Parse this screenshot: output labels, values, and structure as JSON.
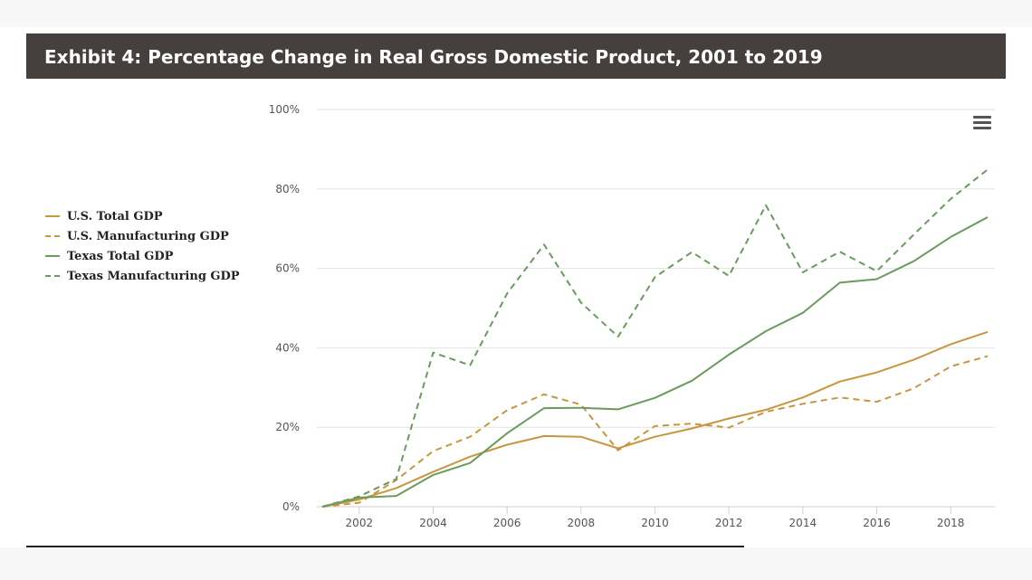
{
  "header": {
    "title": "Exhibit 4: Percentage Change in Real Gross Domestic Product, 2001 to 2019"
  },
  "menu": {
    "icon": "hamburger-menu-icon"
  },
  "colors": {
    "header_bg": "#45403d",
    "us": "#c8963e",
    "texas": "#6b9a5e",
    "grid": "#e2e2e2"
  },
  "chart_data": {
    "type": "line",
    "title": "",
    "xlabel": "",
    "ylabel": "",
    "xlim": [
      2001,
      2019
    ],
    "ylim": [
      0,
      100
    ],
    "x_ticks": [
      2002,
      2004,
      2006,
      2008,
      2010,
      2012,
      2014,
      2016,
      2018
    ],
    "y_ticks": [
      0,
      20,
      40,
      60,
      80,
      100
    ],
    "y_tick_labels": [
      "0%",
      "20%",
      "40%",
      "60%",
      "80%",
      "100%"
    ],
    "grid": true,
    "legend_position": "left",
    "x": [
      2001,
      2002,
      2003,
      2004,
      2005,
      2006,
      2007,
      2008,
      2009,
      2010,
      2011,
      2012,
      2013,
      2014,
      2015,
      2016,
      2017,
      2018,
      2019
    ],
    "series": [
      {
        "name": "U.S. Total GDP",
        "color": "#c8963e",
        "dash": "solid",
        "values": [
          0,
          1.8,
          4.7,
          8.8,
          12.6,
          15.6,
          17.8,
          17.6,
          14.7,
          17.6,
          19.7,
          22.2,
          24.4,
          27.5,
          31.5,
          33.8,
          37.0,
          40.9,
          44.0
        ]
      },
      {
        "name": "U.S. Manufacturing GDP",
        "color": "#c8963e",
        "dash": "dashed",
        "values": [
          0,
          1.0,
          6.7,
          14.0,
          17.6,
          24.3,
          28.3,
          25.7,
          14.2,
          20.3,
          20.9,
          19.9,
          23.9,
          25.9,
          27.5,
          26.4,
          29.8,
          35.3,
          37.9
        ]
      },
      {
        "name": "Texas Total GDP",
        "color": "#6b9a5e",
        "dash": "solid",
        "values": [
          0,
          2.3,
          2.7,
          8.0,
          11.0,
          18.5,
          24.8,
          24.9,
          24.5,
          27.4,
          31.7,
          38.3,
          44.2,
          48.8,
          56.4,
          57.3,
          61.8,
          67.9,
          72.9
        ]
      },
      {
        "name": "Texas Manufacturing GDP",
        "color": "#6b9a5e",
        "dash": "dashed",
        "values": [
          0,
          2.6,
          7.0,
          38.8,
          35.6,
          53.7,
          66.0,
          51.4,
          42.8,
          57.8,
          64.1,
          58.1,
          75.9,
          59.0,
          64.2,
          59.3,
          68.5,
          77.5,
          84.9
        ]
      }
    ]
  }
}
